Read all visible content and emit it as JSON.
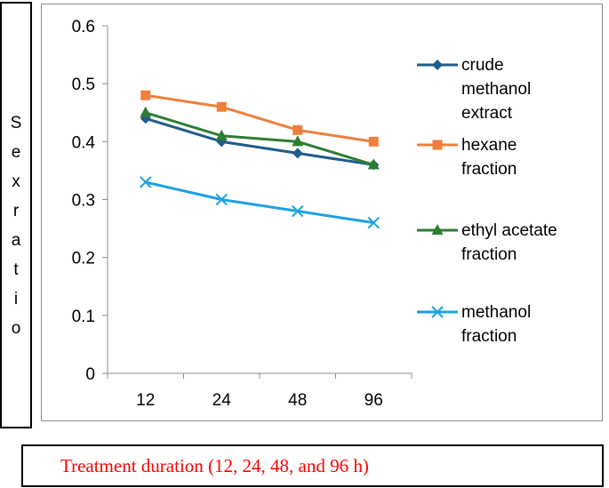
{
  "chart_data": {
    "type": "line",
    "title": "",
    "xlabel": "Treatment duration (12, 24, 48, and 96 h)",
    "ylabel": "Sex ratio",
    "categories": [
      "12",
      "24",
      "48",
      "96"
    ],
    "ylim": [
      0,
      0.6
    ],
    "yticks": [
      "0",
      "0.1",
      "0.2",
      "0.3",
      "0.4",
      "0.5",
      "0.6"
    ],
    "grid": false,
    "legend_position": "right",
    "series": [
      {
        "name": "crude methanol extract",
        "legend_lines": [
          "crude",
          "methanol",
          "extract"
        ],
        "values": [
          0.44,
          0.4,
          0.38,
          0.36
        ],
        "color": "#1f5c8b",
        "marker": "diamond"
      },
      {
        "name": "hexane fraction",
        "legend_lines": [
          "hexane",
          "fraction"
        ],
        "values": [
          0.48,
          0.46,
          0.42,
          0.4
        ],
        "color": "#f07f3c",
        "marker": "square"
      },
      {
        "name": "ethyl acetate fraction",
        "legend_lines": [
          "ethyl acetate",
          "fraction"
        ],
        "values": [
          0.45,
          0.41,
          0.4,
          0.36
        ],
        "color": "#2e7d32",
        "marker": "triangle"
      },
      {
        "name": "methanol fraction",
        "legend_lines": [
          "methanol",
          "fraction"
        ],
        "values": [
          0.33,
          0.3,
          0.28,
          0.26
        ],
        "color": "#1ba1e2",
        "marker": "x"
      }
    ]
  }
}
